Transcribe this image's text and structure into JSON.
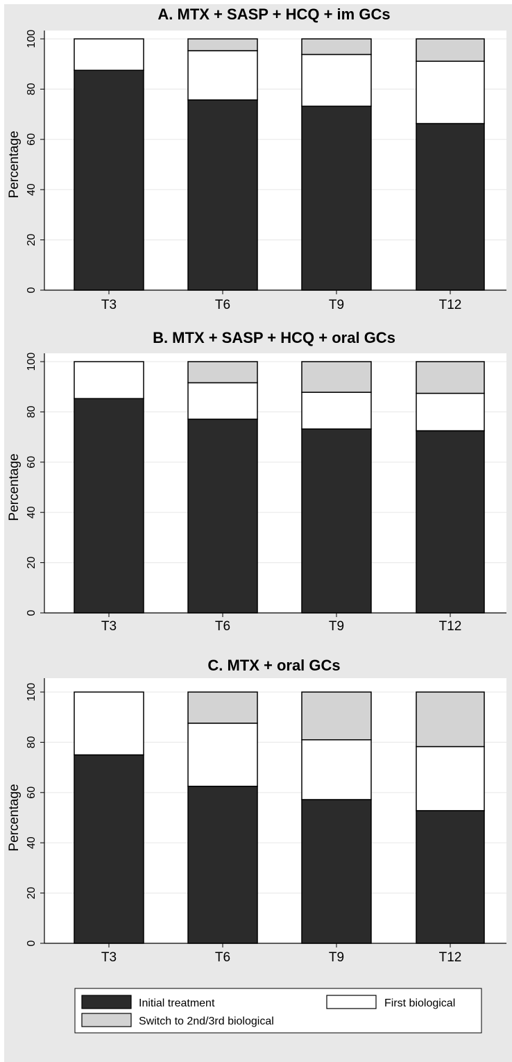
{
  "colors": {
    "outer_background": "#e8e8e8",
    "plot_background": "#ffffff",
    "gridline": "#eaeaea",
    "initial_treatment": "#2b2b2b",
    "first_biological": "#ffffff",
    "switch_biological": "#d3d3d3",
    "bar_outline": "#000000"
  },
  "legend": {
    "items": [
      {
        "label": "Initial treatment",
        "color": "#2b2b2b"
      },
      {
        "label": "First biological",
        "color": "#ffffff"
      },
      {
        "label": "Switch to 2nd/3rd biological",
        "color": "#d3d3d3"
      }
    ]
  },
  "chart_data": [
    {
      "type": "bar",
      "stacked": true,
      "title": "A. MTX + SASP + HCQ + im GCs",
      "ylabel": "Percentage",
      "ylim": [
        0,
        100
      ],
      "yticks": [
        0,
        20,
        40,
        60,
        80,
        100
      ],
      "grid": true,
      "categories": [
        "T3",
        "T6",
        "T9",
        "T12"
      ],
      "series": [
        {
          "name": "Initial treatment",
          "values": [
            87.5,
            75.7,
            73.2,
            66.3
          ]
        },
        {
          "name": "First biological",
          "values": [
            12.5,
            19.6,
            20.6,
            24.8
          ]
        },
        {
          "name": "Switch to 2nd/3rd biological",
          "values": [
            0,
            4.7,
            6.2,
            8.9
          ]
        }
      ]
    },
    {
      "type": "bar",
      "stacked": true,
      "title": "B. MTX + SASP + HCQ + oral GCs",
      "ylabel": "Percentage",
      "ylim": [
        0,
        100
      ],
      "yticks": [
        0,
        20,
        40,
        60,
        80,
        100
      ],
      "grid": true,
      "categories": [
        "T3",
        "T6",
        "T9",
        "T12"
      ],
      "series": [
        {
          "name": "Initial treatment",
          "values": [
            85.3,
            77.1,
            73.2,
            72.5
          ]
        },
        {
          "name": "First biological",
          "values": [
            14.7,
            14.5,
            14.6,
            14.9
          ]
        },
        {
          "name": "Switch to 2nd/3rd biological",
          "values": [
            0,
            8.4,
            12.2,
            12.6
          ]
        }
      ]
    },
    {
      "type": "bar",
      "stacked": true,
      "title": "C. MTX + oral GCs",
      "ylabel": "Percentage",
      "ylim": [
        0,
        100
      ],
      "yticks": [
        0,
        20,
        40,
        60,
        80,
        100
      ],
      "grid": true,
      "categories": [
        "T3",
        "T6",
        "T9",
        "T12"
      ],
      "series": [
        {
          "name": "Initial treatment",
          "values": [
            75,
            62.5,
            57.2,
            52.8
          ]
        },
        {
          "name": "First biological",
          "values": [
            25,
            25.1,
            23.8,
            25.5
          ]
        },
        {
          "name": "Switch to 2nd/3rd biological",
          "values": [
            0,
            12.4,
            19,
            21.7
          ]
        }
      ]
    }
  ]
}
